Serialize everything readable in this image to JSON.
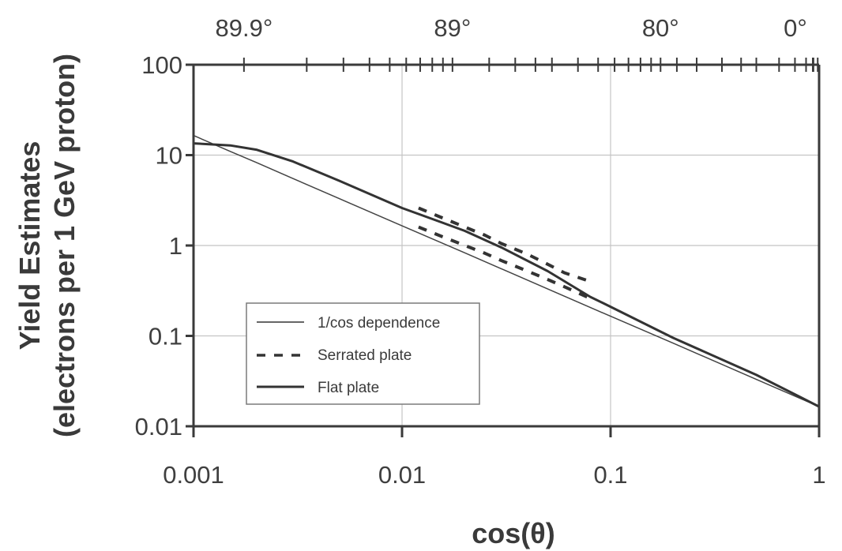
{
  "chart_data": {
    "type": "line",
    "x_scale": "log",
    "y_scale": "log",
    "xlim": [
      0.001,
      1
    ],
    "ylim": [
      0.01,
      100
    ],
    "xlabel": "cos(θ)",
    "ylabel_line1": "Yield Estimates",
    "ylabel_line2": "(electrons per 1 GeV proton)",
    "x_tick_labels": [
      {
        "value": 0.001,
        "label": "0.001"
      },
      {
        "value": 0.01,
        "label": "0.01"
      },
      {
        "value": 0.1,
        "label": "0.1"
      },
      {
        "value": 1,
        "label": "1"
      }
    ],
    "y_tick_labels": [
      {
        "value": 100,
        "label": "100"
      },
      {
        "value": 10,
        "label": "10"
      },
      {
        "value": 1,
        "label": "1"
      },
      {
        "value": 0.1,
        "label": "0.1"
      },
      {
        "value": 0.01,
        "label": "0.01"
      }
    ],
    "top_axis": {
      "quantity": "angle in degrees, θ = arccos(cos θ)",
      "labels": [
        {
          "angle": 89.9,
          "label": "89.9°"
        },
        {
          "angle": 89,
          "label": "89°"
        },
        {
          "angle": 80,
          "label": "80°"
        },
        {
          "angle": 0,
          "label": "0°"
        }
      ],
      "minor_tick_angles": [
        89.95,
        89.8,
        89.7,
        89.6,
        89.5,
        89.4,
        89.3,
        89.2,
        89.1,
        88.5,
        88,
        87.5,
        87,
        86,
        85,
        84,
        83,
        82,
        81,
        78,
        75,
        70,
        65,
        60,
        50,
        40,
        30,
        20,
        10
      ]
    },
    "grid": true,
    "legend_position": "lower-left",
    "series": [
      {
        "name": "1/cos dependence",
        "style": "thin-solid",
        "x": [
          0.001,
          0.0015,
          0.002,
          0.003,
          0.005,
          0.01,
          0.02,
          0.05,
          0.1,
          0.2,
          0.5,
          1
        ],
        "y": [
          16.5,
          11.0,
          8.3,
          5.5,
          3.3,
          1.65,
          0.83,
          0.33,
          0.165,
          0.083,
          0.033,
          0.0165
        ]
      },
      {
        "name": "Serrated plate",
        "style": "dashed",
        "x": [
          0.012,
          0.015,
          0.02,
          0.025,
          0.03,
          0.04,
          0.05,
          0.06,
          0.08
        ],
        "y": [
          2.6,
          2.1,
          1.6,
          1.3,
          1.05,
          0.8,
          0.62,
          0.5,
          0.4
        ]
      },
      {
        "name": "Serrated plate",
        "style": "dashed",
        "x": [
          0.012,
          0.015,
          0.02,
          0.025,
          0.03,
          0.04,
          0.05,
          0.06,
          0.08
        ],
        "y": [
          1.6,
          1.3,
          1.0,
          0.82,
          0.68,
          0.52,
          0.42,
          0.35,
          0.26
        ]
      },
      {
        "name": "Flat plate",
        "style": "solid",
        "x": [
          0.001,
          0.0015,
          0.002,
          0.003,
          0.005,
          0.01,
          0.015,
          0.02,
          0.03,
          0.05,
          0.08,
          0.1,
          0.2,
          0.5,
          1
        ],
        "y": [
          13.5,
          12.8,
          11.5,
          8.5,
          5.2,
          2.6,
          1.85,
          1.45,
          0.95,
          0.52,
          0.27,
          0.21,
          0.095,
          0.037,
          0.0165
        ]
      }
    ]
  }
}
